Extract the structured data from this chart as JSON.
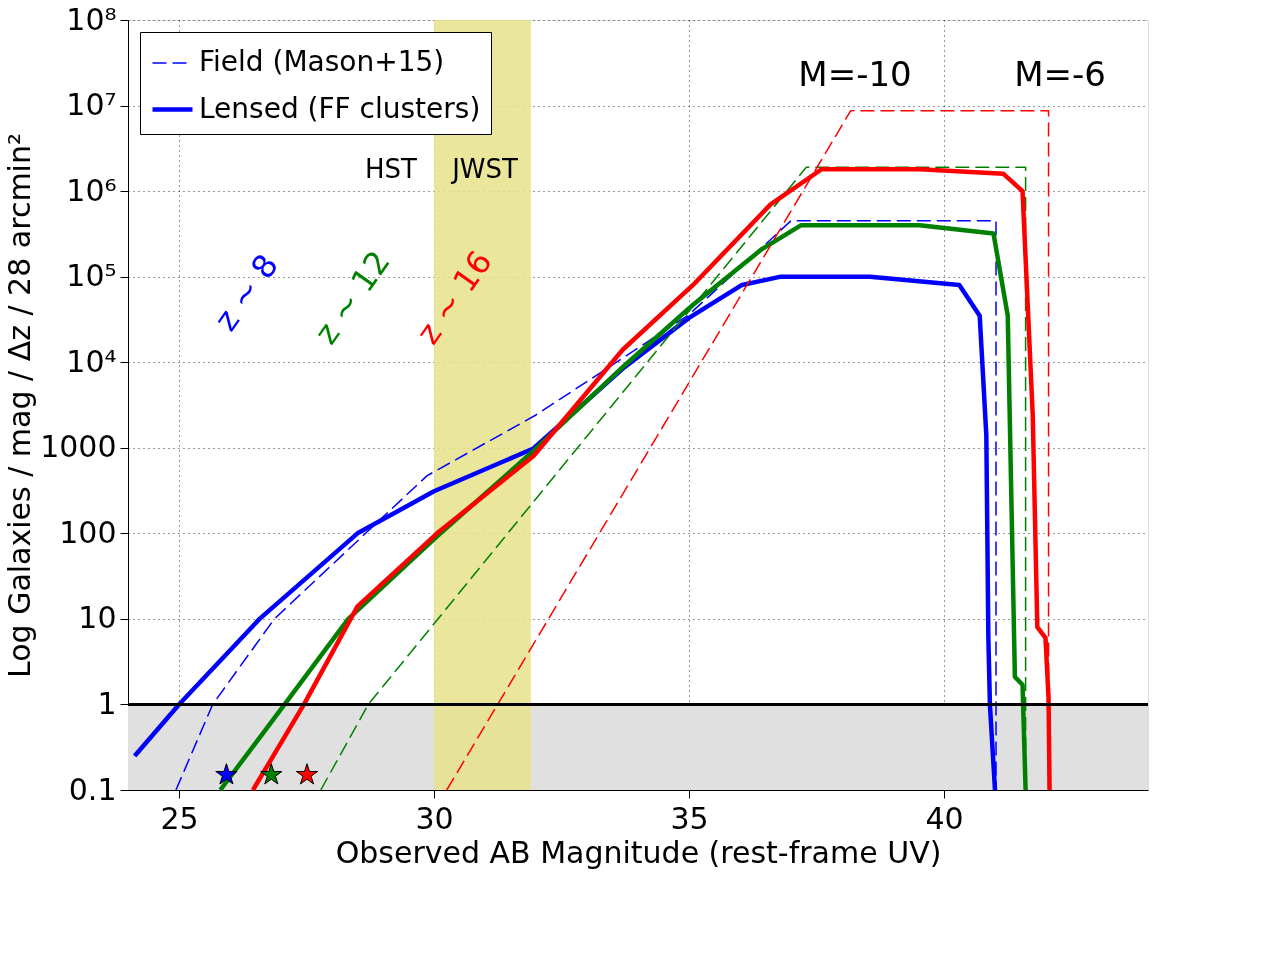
{
  "chart_data": {
    "type": "line",
    "xlabel": "Observed AB Magnitude (rest-frame UV)",
    "ylabel": "Log Galaxies / mag / Δz / 28 arcmin²",
    "xlim": [
      24,
      44
    ],
    "xticks": [
      25,
      30,
      35,
      40
    ],
    "ylim": [
      0.1,
      100000000
    ],
    "log": true,
    "yticks": [
      0.1,
      1,
      10,
      100,
      1000,
      {
        "value": 10000,
        "label": "10⁴"
      },
      {
        "value": 100000,
        "label": "10⁵"
      },
      {
        "value": 1000000,
        "label": "10⁶"
      },
      {
        "value": 10000000,
        "label": "10⁷"
      },
      {
        "value": 100000000,
        "label": "10⁸"
      }
    ],
    "grid": true,
    "legend": "top left",
    "series": [
      {
        "name": "Field (Mason+15)",
        "color": "#0000ff",
        "line_style": "dashed",
        "x": [
          24.94,
          25.66,
          26.87,
          29.86,
          31.99,
          35.0,
          37.0,
          41.02,
          41.02
        ],
        "values": [
          0.1,
          1,
          10,
          470,
          2400,
          36000,
          450000,
          450000,
          0.1
        ]
      },
      {
        "name": "Lensed (FF clusters)",
        "color": "#0000ff",
        "line_style": "solid",
        "x": [
          24.13,
          25.0,
          26.58,
          28.5,
          30.0,
          31.95,
          33.73,
          35.0,
          36.04,
          36.8,
          38.55,
          40.3,
          40.7,
          40.83,
          40.87,
          40.9,
          41.0
        ],
        "values": [
          0.25,
          1,
          10,
          100,
          310,
          980,
          8700,
          33000,
          80000,
          100000,
          100000,
          80000,
          35000,
          1400,
          6,
          1,
          0.1
        ]
      },
      {
        "color": "#008000",
        "line_style": "dashed",
        "x": [
          27.78,
          28.71,
          37.3,
          41.6,
          41.6
        ],
        "values": [
          0.1,
          1,
          1900000,
          1900000,
          0.1
        ]
      },
      {
        "color": "#008000",
        "line_style": "solid",
        "x": [
          25.81,
          27.07,
          28.32,
          30.06,
          31.95,
          33.73,
          35.08,
          36.43,
          37.2,
          39.52,
          40.97,
          41.25,
          41.39,
          41.54,
          41.6
        ],
        "values": [
          0.1,
          1,
          10,
          92,
          920,
          9100,
          47000,
          210000,
          400000,
          400000,
          320000,
          35000,
          2.1,
          1.7,
          0.1
        ]
      },
      {
        "color": "#ff0000",
        "line_style": "dashed",
        "x": [
          30.25,
          38.17,
          42.05,
          42.05
        ],
        "values": [
          0.1,
          8700000,
          8700000,
          0.1
        ]
      },
      {
        "color": "#ff0000",
        "line_style": "solid",
        "x": [
          26.45,
          27.45,
          28.5,
          30.06,
          31.95,
          33.7,
          35.08,
          36.6,
          37.6,
          39.52,
          41.16,
          41.54,
          41.74,
          41.83,
          41.99,
          42.05,
          42.07
        ],
        "values": [
          0.1,
          1,
          14,
          100,
          800,
          14000,
          80000,
          700000,
          1800000,
          1800000,
          1600000,
          1000000,
          2400,
          8,
          6,
          1.2,
          0.1
        ]
      },
      {
        "type": "scatter",
        "marker": "star",
        "color": "#0000ff",
        "x": [
          25.93
        ],
        "values": [
          0.15
        ]
      },
      {
        "type": "scatter",
        "marker": "star",
        "color": "#008000",
        "x": [
          26.81
        ],
        "values": [
          0.15
        ]
      },
      {
        "type": "scatter",
        "marker": "star",
        "color": "#ff0000",
        "x": [
          27.51
        ],
        "values": [
          0.15
        ]
      }
    ],
    "ref_lines": [
      {
        "axis": "y",
        "value": 1,
        "color": "#000000",
        "line_style": "solid"
      }
    ],
    "bands": [
      {
        "axis": "y",
        "from": 0.1,
        "to": 1,
        "color": "#e0e0e0"
      },
      {
        "axis": "x",
        "from": 30,
        "to": 31.9,
        "color": "#e6e38c"
      }
    ],
    "annotations": [
      "M=-10",
      "M=-6",
      "HST",
      "JWST",
      "z ~ 8",
      "z ~ 12",
      "z ~ 16"
    ]
  }
}
